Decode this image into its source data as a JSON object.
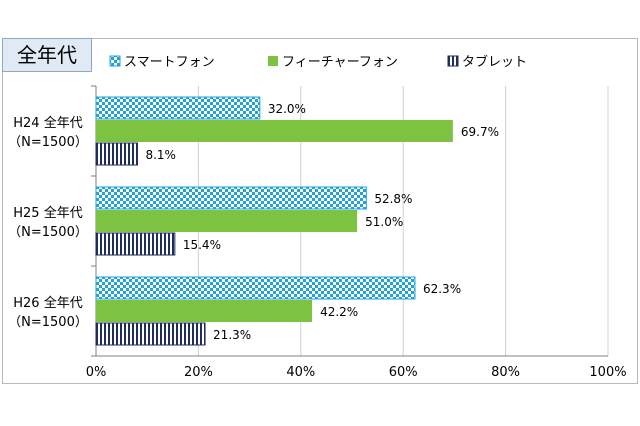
{
  "chart_data": {
    "type": "bar",
    "orientation": "horizontal",
    "title": "全年代",
    "categories": [
      [
        "H24 全年代",
        "（N=1500）"
      ],
      [
        "H25 全年代",
        "（N=1500）"
      ],
      [
        "H26 全年代",
        "（N=1500）"
      ]
    ],
    "series": [
      {
        "name": "スマートフォン",
        "values": [
          32.0,
          52.8,
          62.3
        ],
        "labels": [
          "32.0%",
          "52.8%",
          "62.3%"
        ],
        "color": "#21a3d9",
        "pattern": "checker"
      },
      {
        "name": "フィーチャーフォン",
        "values": [
          69.7,
          51.0,
          42.2
        ],
        "labels": [
          "69.7%",
          "51.0%",
          "42.2%"
        ],
        "color": "#7dc241",
        "pattern": "solid"
      },
      {
        "name": "タブレット",
        "values": [
          8.1,
          15.4,
          21.3
        ],
        "labels": [
          "8.1%",
          "15.4%",
          "21.3%"
        ],
        "color": "#1f2d5c",
        "pattern": "vertical-stripes"
      }
    ],
    "xlim": [
      0,
      100
    ],
    "xticks": [
      "0%",
      "20%",
      "40%",
      "60%",
      "80%",
      "100%"
    ],
    "grid": true,
    "legend_position": "top"
  }
}
